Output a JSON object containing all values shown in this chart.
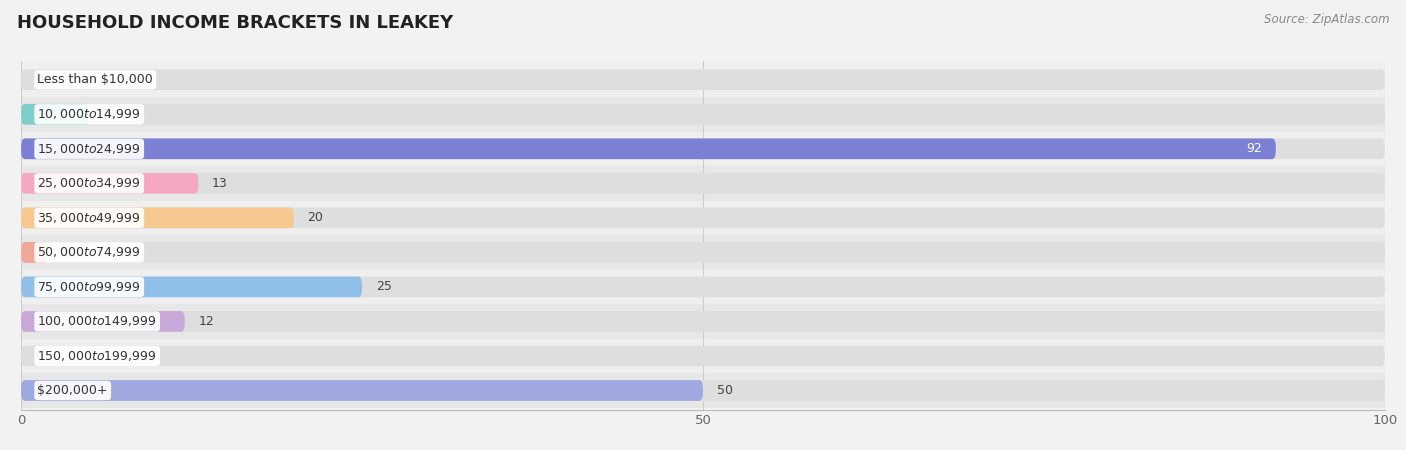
{
  "title": "HOUSEHOLD INCOME BRACKETS IN LEAKEY",
  "source": "Source: ZipAtlas.com",
  "categories": [
    "Less than $10,000",
    "$10,000 to $14,999",
    "$15,000 to $24,999",
    "$25,000 to $34,999",
    "$35,000 to $49,999",
    "$50,000 to $74,999",
    "$75,000 to $99,999",
    "$100,000 to $149,999",
    "$150,000 to $199,999",
    "$200,000+"
  ],
  "values": [
    0,
    5,
    92,
    13,
    20,
    2,
    25,
    12,
    0,
    50
  ],
  "bar_colors": [
    "#c9afd4",
    "#7ececa",
    "#7b80d4",
    "#f5a8c0",
    "#f5c990",
    "#f0a898",
    "#90c0e8",
    "#c8a8d8",
    "#7ececa",
    "#a0a8e0"
  ],
  "xlim": [
    0,
    100
  ],
  "xticks": [
    0,
    50,
    100
  ],
  "background_color": "#f2f2f2",
  "row_bg_even": "#efefef",
  "row_bg_odd": "#e7e7e7",
  "bar_bg_color": "#dedede",
  "title_fontsize": 13,
  "label_fontsize": 9,
  "value_fontsize": 9,
  "bar_height": 0.6
}
